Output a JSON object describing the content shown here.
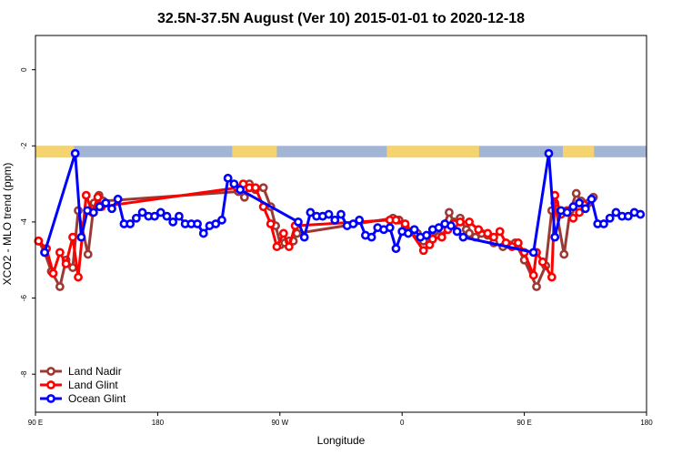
{
  "chart_data": {
    "type": "line",
    "title": "32.5N-37.5N August (Ver 10)   2015-01-01 to 2020-12-18",
    "xlabel": "Longitude",
    "ylabel": "XCO2 - MLO trend (ppm)",
    "xlim": [
      0,
      100
    ],
    "ylim": [
      -9.0,
      0.9
    ],
    "x_ticks": [
      {
        "x": 0,
        "label": "90 E"
      },
      {
        "x": 20,
        "label": "180"
      },
      {
        "x": 40,
        "label": "90 W"
      },
      {
        "x": 60,
        "label": "0"
      },
      {
        "x": 80,
        "label": "90 E"
      },
      {
        "x": 100,
        "label": "180"
      }
    ],
    "y_ticks": [
      {
        "y": 0,
        "label": "0"
      },
      {
        "y": -2,
        "label": "-2"
      },
      {
        "y": -4,
        "label": "-4"
      },
      {
        "y": -6,
        "label": "-6"
      },
      {
        "y": -8,
        "label": "-8"
      }
    ],
    "grid": false,
    "legend_position": "bottom-left",
    "land_mask_band": {
      "y_top": -2.0,
      "y_bottom": -2.3,
      "ocean_color": "#a2b5d5",
      "land_color": "#f5d36e",
      "land_ranges": [
        [
          0,
          6.3
        ],
        [
          32.2,
          39.5
        ],
        [
          57.5,
          72.6
        ],
        [
          86.3,
          91.4
        ]
      ]
    },
    "series": [
      {
        "name": "Land Nadir",
        "color": "#9b3a35",
        "x": [
          0.5,
          1.5,
          2.6,
          4.0,
          5.0,
          6.1,
          7.0,
          8.6,
          9.6,
          10.4,
          11.1,
          33.2,
          34.2,
          35.0,
          36.0,
          37.3,
          38.5,
          39.3,
          40.1,
          40.8,
          41.5,
          42.2,
          42.8,
          58.5,
          59.5,
          60.5,
          62.5,
          63.5,
          65.0,
          66.5,
          67.7,
          68.5,
          69.5,
          70.5,
          71.0,
          72.0,
          73.0,
          74.0,
          75.0,
          76.5,
          77.5,
          78.5,
          80.0,
          82.0,
          83.5,
          84.5,
          85.0,
          86.5,
          87.5,
          88.5,
          89.3,
          90.5,
          91.3
        ],
        "y": [
          -4.5,
          -4.8,
          -5.3,
          -5.7,
          -5.0,
          -5.2,
          -3.7,
          -4.85,
          -3.5,
          -3.3,
          -3.45,
          -3.2,
          -3.35,
          -3.0,
          -3.15,
          -3.1,
          -3.6,
          -4.1,
          -4.6,
          -4.55,
          -4.5,
          -4.5,
          -4.3,
          -3.9,
          -3.95,
          -4.1,
          -4.3,
          -4.5,
          -4.4,
          -4.2,
          -3.75,
          -4.0,
          -3.9,
          -4.2,
          -4.3,
          -4.4,
          -4.3,
          -4.35,
          -4.55,
          -4.65,
          -4.6,
          -4.55,
          -5.0,
          -5.7,
          -5.15,
          -3.7,
          -3.5,
          -4.85,
          -3.7,
          -3.25,
          -3.45,
          -3.5,
          -3.35
        ]
      },
      {
        "name": "Land Glint",
        "color": "#ff0000",
        "x": [
          0.5,
          1.8,
          2.9,
          4.0,
          5.0,
          6.1,
          7.0,
          8.3,
          9.3,
          10.2,
          10.8,
          33.0,
          34.0,
          35.0,
          36.0,
          37.3,
          38.5,
          39.5,
          40.6,
          41.5,
          42.5,
          58.0,
          59.0,
          60.5,
          63.5,
          64.5,
          65.0,
          66.5,
          67.5,
          68.5,
          69.5,
          71.0,
          72.5,
          74.0,
          75.0,
          76.0,
          77.0,
          78.0,
          79.0,
          80.0,
          81.5,
          82.0,
          83.0,
          84.5,
          85.0,
          86.0,
          87.0,
          88.0,
          89.0,
          89.8
        ],
        "y": [
          -4.5,
          -4.7,
          -5.35,
          -4.8,
          -5.1,
          -4.4,
          -5.45,
          -3.3,
          -3.75,
          -3.35,
          -3.6,
          -3.1,
          -3.0,
          -3.1,
          -3.1,
          -3.6,
          -4.05,
          -4.65,
          -4.3,
          -4.65,
          -4.1,
          -3.95,
          -3.95,
          -4.05,
          -4.75,
          -4.6,
          -4.45,
          -4.4,
          -4.2,
          -4.05,
          -4.0,
          -4.0,
          -4.2,
          -4.3,
          -4.4,
          -4.25,
          -4.55,
          -4.65,
          -4.55,
          -4.8,
          -5.4,
          -4.8,
          -5.05,
          -5.45,
          -3.3,
          -3.8,
          -3.7,
          -3.9,
          -3.75,
          -3.55
        ]
      },
      {
        "name": "Ocean Glint",
        "color": "#0000ff",
        "x": [
          1.5,
          6.5,
          7.5,
          8.5,
          9.5,
          10.5,
          11.5,
          12.5,
          13.5,
          14.5,
          15.5,
          16.5,
          17.5,
          18.5,
          19.5,
          20.5,
          21.5,
          22.5,
          23.5,
          24.5,
          25.5,
          26.5,
          27.5,
          28.5,
          29.5,
          30.5,
          31.5,
          32.5,
          33.5,
          43.0,
          44.0,
          45.0,
          46.0,
          47.0,
          48.0,
          49.0,
          50.0,
          51.0,
          52.0,
          53.0,
          54.0,
          55.0,
          56.0,
          57.0,
          58.0,
          59.0,
          60.0,
          61.0,
          62.0,
          63.0,
          64.0,
          65.0,
          66.0,
          67.0,
          68.0,
          69.0,
          70.0,
          81.5,
          84.0,
          85.0,
          86.0,
          87.0,
          88.0,
          89.0,
          90.0,
          91.0,
          92.0,
          93.0,
          94.0,
          95.0,
          96.0,
          97.0,
          98.0,
          99.0
        ],
        "y": [
          -4.8,
          -2.2,
          -4.4,
          -3.7,
          -3.75,
          -3.6,
          -3.5,
          -3.65,
          -3.4,
          -4.05,
          -4.05,
          -3.9,
          -3.75,
          -3.85,
          -3.85,
          -3.75,
          -3.85,
          -4.0,
          -3.85,
          -4.05,
          -4.05,
          -4.05,
          -4.3,
          -4.1,
          -4.05,
          -3.95,
          -2.85,
          -3.0,
          -3.15,
          -4.0,
          -4.4,
          -3.75,
          -3.85,
          -3.85,
          -3.8,
          -3.95,
          -3.8,
          -4.1,
          -4.05,
          -3.95,
          -4.35,
          -4.4,
          -4.15,
          -4.2,
          -4.15,
          -4.7,
          -4.25,
          -4.3,
          -4.2,
          -4.4,
          -4.35,
          -4.2,
          -4.15,
          -4.05,
          -4.1,
          -4.25,
          -4.4,
          -4.8,
          -2.2,
          -4.4,
          -3.7,
          -3.75,
          -3.6,
          -3.5,
          -3.65,
          -3.4,
          -4.05,
          -4.05,
          -3.9,
          -3.75,
          -3.85,
          -3.85,
          -3.75,
          -3.8
        ]
      }
    ]
  }
}
